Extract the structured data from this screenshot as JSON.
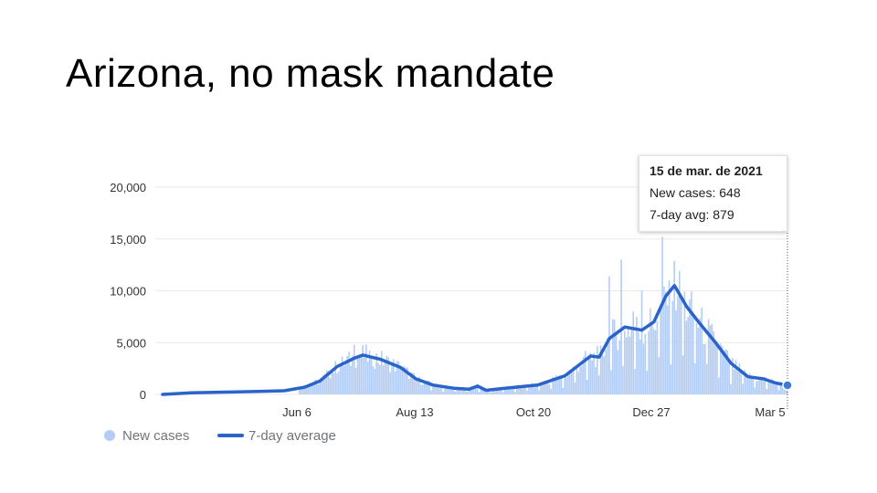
{
  "slide": {
    "title": "Arizona, no mask mandate"
  },
  "tooltip": {
    "date": "15 de mar. de 2021",
    "new_cases_label": "New cases: 648",
    "avg_label": "7-day avg: 879"
  },
  "legend": {
    "new_cases": "New cases",
    "avg": "7-day average"
  },
  "colors": {
    "bars": "#b3cdf4",
    "line": "#2a63c9",
    "grid": "#e8eaed"
  },
  "chart_data": {
    "type": "bar",
    "x_ticks": [
      "Jun 6",
      "Aug 13",
      "Oct 20",
      "Dec 27",
      "Mar 5"
    ],
    "y_ticks": [
      "0",
      "5,000",
      "10,000",
      "15,000",
      "20,000"
    ],
    "ylim": [
      0,
      20000
    ],
    "grid": true,
    "legend_position": "bottom-left",
    "series": [
      {
        "name": "7-day average",
        "type": "line",
        "points": [
          [
            "Mar 15",
            0
          ],
          [
            "Apr 1",
            150
          ],
          [
            "Apr 20",
            220
          ],
          [
            "May 10",
            280
          ],
          [
            "May 25",
            350
          ],
          [
            "Jun 6",
            700
          ],
          [
            "Jun 15",
            1300
          ],
          [
            "Jun 25",
            2700
          ],
          [
            "Jul 5",
            3500
          ],
          [
            "Jul 10",
            3800
          ],
          [
            "Jul 20",
            3400
          ],
          [
            "Aug 1",
            2600
          ],
          [
            "Aug 10",
            1500
          ],
          [
            "Aug 20",
            900
          ],
          [
            "Sep 1",
            600
          ],
          [
            "Sep 10",
            500
          ],
          [
            "Sep 15",
            800
          ],
          [
            "Sep 20",
            400
          ],
          [
            "Oct 1",
            600
          ],
          [
            "Oct 20",
            900
          ],
          [
            "Nov 5",
            1800
          ],
          [
            "Nov 20",
            3700
          ],
          [
            "Nov 25",
            3600
          ],
          [
            "Dec 1",
            5400
          ],
          [
            "Dec 10",
            6500
          ],
          [
            "Dec 20",
            6200
          ],
          [
            "Dec 27",
            7000
          ],
          [
            "Jan 3",
            9500
          ],
          [
            "Jan 8",
            10500
          ],
          [
            "Jan 15",
            8500
          ],
          [
            "Jan 22",
            7000
          ],
          [
            "Feb 1",
            5000
          ],
          [
            "Feb 10",
            3000
          ],
          [
            "Feb 20",
            1700
          ],
          [
            "Mar 1",
            1500
          ],
          [
            "Mar 8",
            1100
          ],
          [
            "Mar 15",
            879
          ]
        ]
      },
      {
        "name": "New cases",
        "type": "bar",
        "points": [
          [
            "Jun 6",
            900
          ],
          [
            "Jun 20",
            2300
          ],
          [
            "Jul 1",
            3700
          ],
          [
            "Jul 5",
            4800
          ],
          [
            "Jul 15",
            3600
          ],
          [
            "Aug 1",
            2500
          ],
          [
            "Aug 20",
            900
          ],
          [
            "Sep 15",
            1000
          ],
          [
            "Oct 20",
            900
          ],
          [
            "Nov 20",
            4000
          ],
          [
            "Dec 1",
            11400
          ],
          [
            "Dec 8",
            13000
          ],
          [
            "Dec 15",
            8000
          ],
          [
            "Dec 20",
            10000
          ],
          [
            "Jan 1",
            15200
          ],
          [
            "Jan 5",
            11000
          ],
          [
            "Jan 10",
            9500
          ],
          [
            "Jan 20",
            7500
          ],
          [
            "Feb 1",
            5000
          ],
          [
            "Feb 10",
            2500
          ],
          [
            "Feb 20",
            1500
          ],
          [
            "Mar 1",
            1300
          ],
          [
            "Mar 15",
            648
          ]
        ]
      }
    ]
  }
}
